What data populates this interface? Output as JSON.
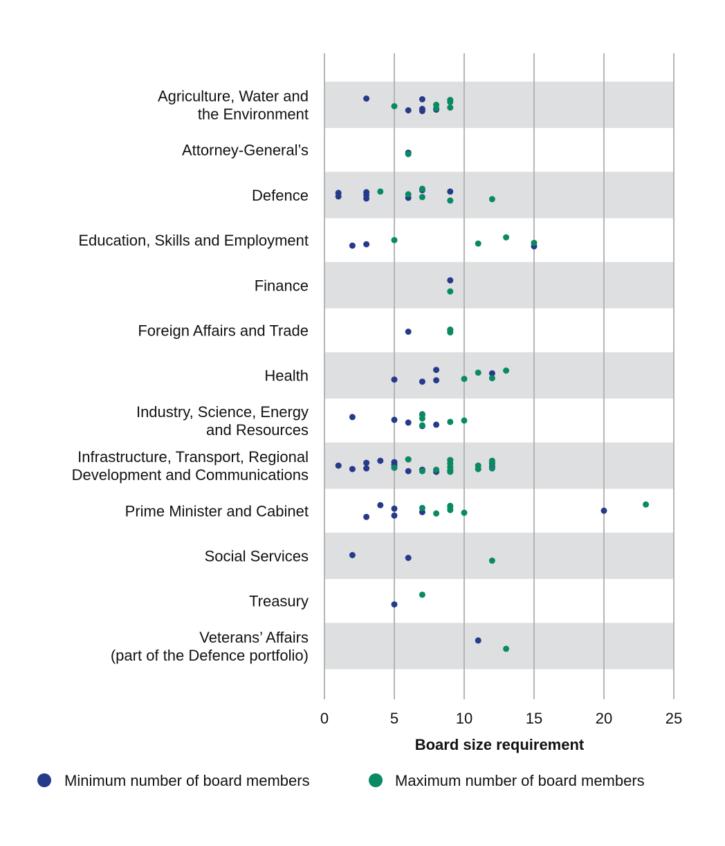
{
  "chart_data": {
    "type": "scatter",
    "xlabel": "Board size requirement",
    "xlim": [
      0,
      25
    ],
    "xticks": [
      0,
      5,
      10,
      15,
      20,
      25
    ],
    "grid": true,
    "legend_position": "bottom",
    "colors": {
      "min": "#263a8a",
      "max": "#0a8a62",
      "band": "#dedfe1",
      "grid": "#b5b5b5"
    },
    "categories": [
      [
        "Agriculture, Water and",
        "the Environment"
      ],
      [
        "Attorney-General’s"
      ],
      [
        "Defence"
      ],
      [
        "Education, Skills and Employment"
      ],
      [
        "Finance"
      ],
      [
        "Foreign Affairs and Trade"
      ],
      [
        "Health"
      ],
      [
        "Industry, Science, Energy",
        "and Resources"
      ],
      [
        "Infrastructure, Transport, Regional",
        "Development and Communications"
      ],
      [
        "Prime Minister and Cabinet"
      ],
      [
        "Social Services"
      ],
      [
        "Treasury"
      ],
      [
        "Veterans’ Affairs",
        "(part of the Defence portfolio)"
      ]
    ],
    "series": [
      {
        "name": "Minimum number of board members",
        "values": [
          [
            3,
            6,
            7,
            7,
            7,
            8
          ],
          [
            6
          ],
          [
            1,
            1,
            3,
            3,
            3,
            6,
            7,
            9
          ],
          [
            2,
            3,
            15
          ],
          [
            9
          ],
          [
            6,
            9
          ],
          [
            5,
            7,
            8,
            8,
            12
          ],
          [
            2,
            5,
            6,
            7,
            7,
            8
          ],
          [
            1,
            2,
            3,
            3,
            4,
            5,
            5,
            5,
            6,
            6,
            7,
            8,
            9,
            9,
            12,
            12
          ],
          [
            3,
            4,
            5,
            5,
            7,
            20
          ],
          [
            2,
            6
          ],
          [
            5
          ],
          [
            11
          ]
        ]
      },
      {
        "name": "Maximum number of board members",
        "values": [
          [
            5,
            8,
            8,
            9,
            9,
            9
          ],
          [
            6
          ],
          [
            4,
            6,
            7,
            7,
            9,
            12
          ],
          [
            5,
            11,
            13,
            15
          ],
          [
            9
          ],
          [
            9,
            9
          ],
          [
            10,
            11,
            12,
            13
          ],
          [
            7,
            7,
            7,
            9,
            10
          ],
          [
            5,
            6,
            7,
            8,
            9,
            9,
            9,
            9,
            9,
            11,
            11,
            12,
            12,
            12
          ],
          [
            7,
            8,
            9,
            9,
            9,
            10,
            23
          ],
          [
            12
          ],
          [
            7
          ],
          [
            13
          ]
        ]
      }
    ]
  }
}
